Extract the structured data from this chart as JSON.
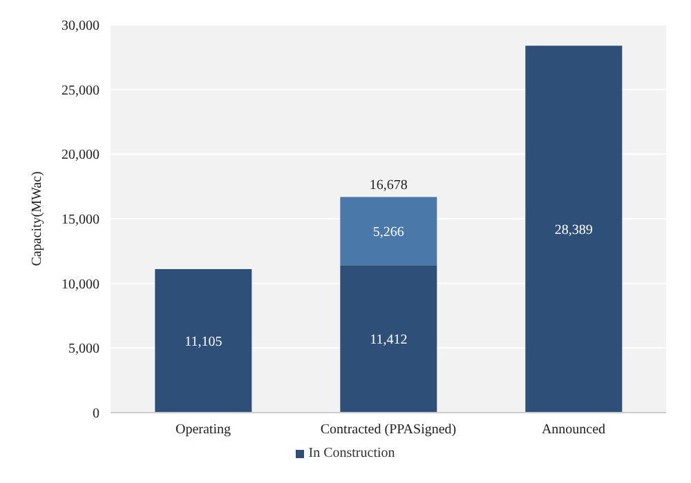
{
  "chart_data": {
    "type": "bar",
    "ylabel": "Capacity(MWac)",
    "categories": [
      "Operating",
      "Contracted (PPASigned)",
      "Announced"
    ],
    "stacked": true,
    "series": [
      {
        "name": "In Construction",
        "color": "#2e4f78",
        "values": [
          11105,
          11412,
          28389
        ],
        "value_labels": [
          "11,105",
          "11,412",
          "28,389"
        ]
      },
      {
        "color": "#4a78a8",
        "values": [
          null,
          5266,
          null
        ],
        "value_labels": [
          null,
          "5,266",
          null
        ]
      }
    ],
    "totals": [
      null,
      "16,678",
      null
    ],
    "ylim": [
      0,
      30000
    ],
    "yticks": [
      0,
      {
        "value": 5000,
        "label": "5,000"
      },
      {
        "value": 10000,
        "label": "10,000"
      },
      {
        "value": 15000,
        "label": "15,000"
      },
      {
        "value": 20000,
        "label": "20,000"
      },
      {
        "value": 25000,
        "label": "25,000"
      },
      {
        "value": 30000,
        "label": "30,000"
      }
    ],
    "grid": "y",
    "legend": "bottom"
  }
}
